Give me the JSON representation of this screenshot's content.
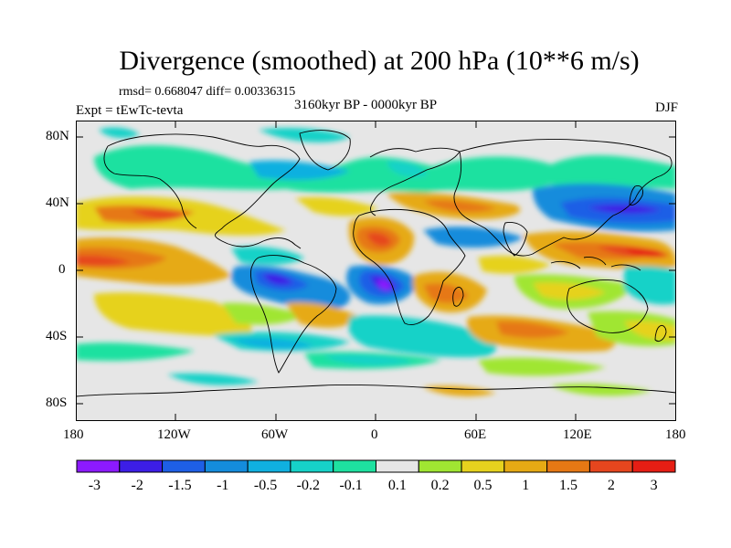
{
  "title": "Divergence (smoothed) at 200 hPa (10**6 m/s)",
  "stats_line": "rmsd= 0.668047 diff= 0.00336315",
  "experiment": "Expt = tEwTc-tevta",
  "period": "3160kyr BP - 0000kyr BP",
  "season": "DJF",
  "lat_ticks": [
    "80N",
    "40N",
    "0",
    "40S",
    "80S"
  ],
  "lon_ticks": [
    "180",
    "120W",
    "60W",
    "0",
    "60E",
    "120E",
    "180"
  ],
  "colorbar": {
    "labels": [
      "-3",
      "-2",
      "-1.5",
      "-1",
      "-0.5",
      "-0.2",
      "-0.1",
      "0.1",
      "0.2",
      "0.5",
      "1",
      "1.5",
      "2",
      "3"
    ],
    "colors": [
      "#8c1aff",
      "#3c1ee6",
      "#1e5fe6",
      "#148cdc",
      "#10b0e0",
      "#16d2c8",
      "#1ee1a0",
      "#e6e6e6",
      "#a0e632",
      "#e6d21e",
      "#e6aa14",
      "#e67814",
      "#e6461e",
      "#e61e14"
    ]
  },
  "legend_colors": {
    "background_neutral": "#e6e6e6",
    "coastline": "#000000"
  },
  "features": [
    {
      "name": "equatorial-west-pacific-divergence",
      "value": 3
    },
    {
      "name": "north-pacific-convergence",
      "value": -2
    },
    {
      "name": "equatorial-atlantic-convergence",
      "value": -2.5
    },
    {
      "name": "africa-convergence",
      "value": -2
    },
    {
      "name": "east-pacific-divergence",
      "value": 1.5
    }
  ]
}
